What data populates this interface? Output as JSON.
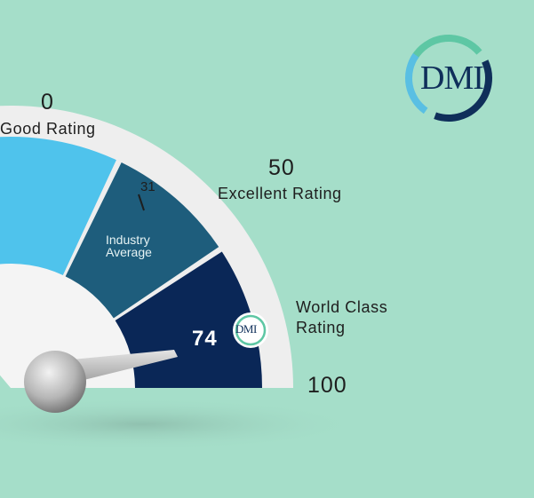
{
  "gauge": {
    "value": 74,
    "min_label": "0",
    "min_caption": "Good Rating",
    "mid_label": "50",
    "mid_caption": "Excellent Rating",
    "max_label": "100",
    "top_caption_line1": "World Class",
    "top_caption_line2": "Rating",
    "industry_value": "31",
    "industry_caption_line1": "Industry",
    "industry_caption_line2": "Average",
    "value_label": "74"
  },
  "brand": {
    "logo_text": "DMI",
    "badge_text": "DMI"
  },
  "colors": {
    "background": "#a5dec9",
    "rim": "#eeeeee",
    "segment_teal": "#54b7c2",
    "segment_light_blue": "#4fc3ec",
    "segment_mid_blue": "#1e5d7c",
    "segment_navy": "#0a2757",
    "logo_arc_green": "#5ec7a4",
    "logo_arc_light": "#59bfe3",
    "logo_arc_navy": "#0f2f5a"
  }
}
